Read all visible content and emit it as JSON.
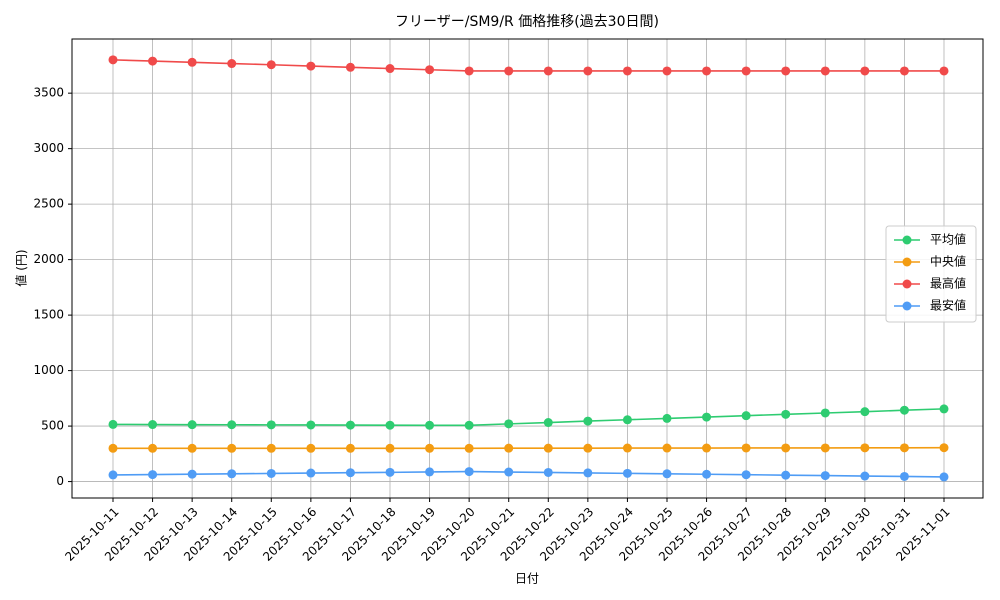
{
  "chart_data": {
    "type": "line",
    "title": "フリーザー/SM9/R 価格推移(過去30日間)",
    "x_label": "日付",
    "y_label": "値 (円)",
    "categories": [
      "2025-10-11",
      "2025-10-12",
      "2025-10-13",
      "2025-10-14",
      "2025-10-15",
      "2025-10-16",
      "2025-10-17",
      "2025-10-18",
      "2025-10-19",
      "2025-10-20",
      "2025-10-21",
      "2025-10-22",
      "2025-10-23",
      "2025-10-24",
      "2025-10-25",
      "2025-10-26",
      "2025-10-27",
      "2025-10-28",
      "2025-10-29",
      "2025-10-30",
      "2025-10-31",
      "2025-11-01"
    ],
    "series": [
      {
        "name": "平均値",
        "color": "#2ecc71",
        "values": [
          515,
          514,
          513,
          512,
          511,
          510,
          509,
          508,
          507,
          507,
          520,
          532,
          545,
          557,
          569,
          581,
          594,
          606,
          618,
          630,
          643,
          655
        ]
      },
      {
        "name": "中央値",
        "color": "#f39c12",
        "values": [
          300,
          300,
          300,
          300,
          300,
          300,
          300,
          300,
          300,
          300,
          301,
          301,
          301,
          302,
          302,
          302,
          303,
          303,
          303,
          304,
          304,
          305
        ]
      },
      {
        "name": "最高値",
        "color": "#f04a4a",
        "values": [
          3800,
          3789,
          3778,
          3767,
          3756,
          3744,
          3733,
          3722,
          3711,
          3700,
          3700,
          3700,
          3700,
          3700,
          3700,
          3700,
          3700,
          3700,
          3700,
          3700,
          3700,
          3700
        ]
      },
      {
        "name": "最安値",
        "color": "#4f9cf5",
        "values": [
          60,
          63,
          67,
          70,
          73,
          77,
          80,
          83,
          87,
          90,
          86,
          82,
          78,
          74,
          70,
          66,
          62,
          58,
          54,
          50,
          46,
          42
        ]
      }
    ],
    "ylim": [
      -148,
      3988
    ],
    "yticks": [
      0,
      500,
      1000,
      1500,
      2000,
      2500,
      3000,
      3500
    ],
    "grid": true,
    "legend": "right"
  }
}
